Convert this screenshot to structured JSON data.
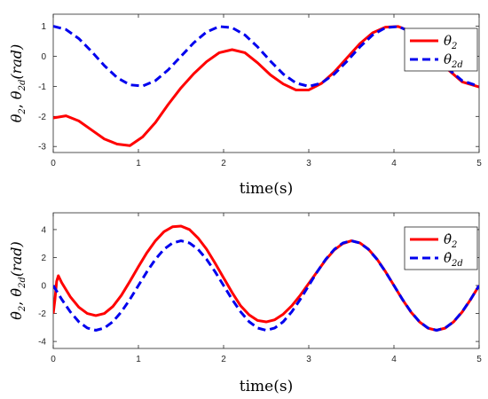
{
  "chart_data": [
    {
      "type": "line",
      "xlabel": "time(s)",
      "ylabel": "θ2, θ2d(rad)",
      "ylabel_parts": {
        "sym": "θ",
        "sub1": "2",
        "sub2": "2d",
        "unit": "(rad)"
      },
      "xlim": [
        0,
        5
      ],
      "ylim": [
        -3.2,
        1.4
      ],
      "xticks": [
        0,
        1,
        2,
        3,
        4,
        5
      ],
      "yticks": [
        -3,
        -2,
        -1,
        0,
        1
      ],
      "grid": false,
      "legend_position": "top-right",
      "series": [
        {
          "name": "θ2",
          "legend": {
            "sym": "θ",
            "sub": "2"
          },
          "color": "#ff0000",
          "style": "solid",
          "x": [
            0,
            0.15,
            0.3,
            0.45,
            0.6,
            0.75,
            0.9,
            1.05,
            1.2,
            1.35,
            1.5,
            1.65,
            1.8,
            1.95,
            2.1,
            2.25,
            2.4,
            2.55,
            2.7,
            2.85,
            3.0,
            3.15,
            3.3,
            3.45,
            3.6,
            3.75,
            3.9,
            4.05,
            4.2,
            4.35,
            4.5,
            4.65,
            4.8,
            5.0
          ],
          "y": [
            -2.05,
            -1.98,
            -2.15,
            -2.45,
            -2.75,
            -2.92,
            -2.97,
            -2.68,
            -2.2,
            -1.6,
            -1.05,
            -0.58,
            -0.18,
            0.12,
            0.22,
            0.12,
            -0.22,
            -0.62,
            -0.92,
            -1.12,
            -1.12,
            -0.9,
            -0.52,
            -0.05,
            0.42,
            0.78,
            0.97,
            0.99,
            0.82,
            0.45,
            -0.02,
            -0.48,
            -0.85,
            -1.02
          ]
        },
        {
          "name": "θ2d",
          "legend": {
            "sym": "θ",
            "sub": "2d"
          },
          "color": "#0000ee",
          "style": "dashed",
          "x": [
            0,
            0.15,
            0.3,
            0.45,
            0.6,
            0.75,
            0.9,
            1.05,
            1.2,
            1.35,
            1.5,
            1.65,
            1.8,
            1.95,
            2.1,
            2.25,
            2.4,
            2.55,
            2.7,
            2.85,
            3.0,
            3.15,
            3.3,
            3.45,
            3.6,
            3.75,
            3.9,
            4.05,
            4.2,
            4.35,
            4.5,
            4.65,
            4.8,
            5.0
          ],
          "y": [
            1.0,
            0.89,
            0.59,
            0.16,
            -0.31,
            -0.71,
            -0.95,
            -0.99,
            -0.81,
            -0.45,
            0.0,
            0.45,
            0.81,
            0.99,
            0.95,
            0.71,
            0.31,
            -0.16,
            -0.59,
            -0.89,
            -1.0,
            -0.89,
            -0.59,
            -0.16,
            0.31,
            0.71,
            0.95,
            0.99,
            0.81,
            0.45,
            0.0,
            -0.45,
            -0.81,
            -1.0
          ]
        }
      ]
    },
    {
      "type": "line",
      "xlabel": "time(s)",
      "ylabel": "θ̇2, θ̇2d(rad)",
      "ylabel_parts": {
        "sym": "θ̇",
        "sub1": "2",
        "sub2": "2d",
        "unit": "(rad)"
      },
      "xlim": [
        0,
        5
      ],
      "ylim": [
        -4.5,
        5.2
      ],
      "xticks": [
        0,
        1,
        2,
        3,
        4,
        5
      ],
      "yticks": [
        -4,
        -2,
        0,
        2,
        4
      ],
      "grid": false,
      "legend_position": "top-right",
      "series": [
        {
          "name": "θ̇2",
          "legend": {
            "sym": "θ̇",
            "sub": "2"
          },
          "color": "#ff0000",
          "style": "solid",
          "x": [
            0,
            0.02,
            0.04,
            0.06,
            0.1,
            0.2,
            0.3,
            0.4,
            0.5,
            0.6,
            0.7,
            0.8,
            0.9,
            1.0,
            1.1,
            1.2,
            1.3,
            1.4,
            1.5,
            1.6,
            1.7,
            1.8,
            1.9,
            2.0,
            2.1,
            2.2,
            2.3,
            2.4,
            2.5,
            2.6,
            2.7,
            2.8,
            2.9,
            3.0,
            3.1,
            3.2,
            3.3,
            3.4,
            3.5,
            3.6,
            3.7,
            3.8,
            3.9,
            4.0,
            4.1,
            4.2,
            4.3,
            4.4,
            4.5,
            4.6,
            4.7,
            4.8,
            4.9,
            5.0
          ],
          "y": [
            -2.0,
            -1.0,
            0.3,
            0.7,
            0.2,
            -0.8,
            -1.55,
            -2.0,
            -2.15,
            -2.0,
            -1.5,
            -0.7,
            0.3,
            1.35,
            2.35,
            3.2,
            3.85,
            4.2,
            4.25,
            4.0,
            3.4,
            2.6,
            1.6,
            0.55,
            -0.5,
            -1.45,
            -2.1,
            -2.5,
            -2.6,
            -2.45,
            -2.05,
            -1.45,
            -0.7,
            0.15,
            1.0,
            1.85,
            2.55,
            3.0,
            3.2,
            3.05,
            2.6,
            1.9,
            1.0,
            0.0,
            -1.0,
            -1.9,
            -2.6,
            -3.05,
            -3.2,
            -3.05,
            -2.6,
            -1.9,
            -1.0,
            0.0
          ]
        },
        {
          "name": "θ̇2d",
          "legend": {
            "sym": "θ̇",
            "sub": "2d"
          },
          "color": "#0000ee",
          "style": "dashed",
          "x": [
            0,
            0.1,
            0.2,
            0.3,
            0.4,
            0.5,
            0.6,
            0.7,
            0.8,
            0.9,
            1.0,
            1.1,
            1.2,
            1.3,
            1.4,
            1.5,
            1.6,
            1.7,
            1.8,
            1.9,
            2.0,
            2.1,
            2.2,
            2.3,
            2.4,
            2.5,
            2.6,
            2.7,
            2.8,
            2.9,
            3.0,
            3.1,
            3.2,
            3.3,
            3.4,
            3.5,
            3.6,
            3.7,
            3.8,
            3.9,
            4.0,
            4.1,
            4.2,
            4.3,
            4.4,
            4.5,
            4.6,
            4.7,
            4.8,
            4.9,
            5.0
          ],
          "y": [
            0.0,
            -0.99,
            -1.88,
            -2.59,
            -3.04,
            -3.2,
            -3.04,
            -2.59,
            -1.88,
            -0.99,
            0.0,
            0.99,
            1.88,
            2.59,
            3.04,
            3.2,
            3.04,
            2.59,
            1.88,
            0.99,
            0.0,
            -0.99,
            -1.88,
            -2.59,
            -3.04,
            -3.2,
            -3.04,
            -2.59,
            -1.88,
            -0.99,
            0.0,
            0.99,
            1.88,
            2.59,
            3.04,
            3.2,
            3.04,
            2.59,
            1.88,
            0.99,
            0.0,
            -0.99,
            -1.88,
            -2.59,
            -3.04,
            -3.2,
            -3.04,
            -2.59,
            -1.88,
            -0.99,
            0.0
          ]
        }
      ]
    }
  ]
}
